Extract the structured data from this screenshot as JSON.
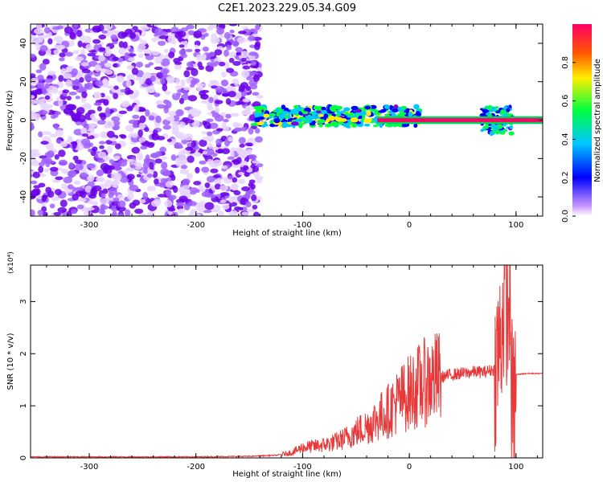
{
  "title": "C2E1.2023.229.05.34.G09",
  "colors": {
    "signal": "#e8393a",
    "axis": "#000000",
    "background": "#ffffff"
  },
  "chart_data": [
    {
      "type": "heatmap",
      "xlabel": "Height of straight line (km)",
      "ylabel": "Frequency (Hz)",
      "xlim": [
        -355,
        125
      ],
      "ylim": [
        -50,
        50
      ],
      "x_ticks": [
        -300,
        -200,
        -100,
        0,
        100
      ],
      "y_ticks": [
        -40,
        -20,
        0,
        20,
        40
      ],
      "colorbar": {
        "label": "Normalized spectral amplitude",
        "range": [
          0,
          1
        ],
        "ticks": [
          "0.0",
          "0.2",
          "0.4",
          "0.6",
          "0.8"
        ],
        "colormap": [
          "#eeddff",
          "#7a00e0",
          "#0000ff",
          "#00c8ff",
          "#00ff40",
          "#ffee00",
          "#ff5500",
          "#ff0066"
        ]
      },
      "regions": [
        {
          "x_range": [
            -355,
            -140
          ],
          "y_range": [
            -50,
            50
          ],
          "amplitude": [
            0.0,
            0.2
          ],
          "description_level": "scattered low amplitude"
        },
        {
          "x_range": [
            -145,
            10
          ],
          "y_center": 2,
          "y_halfwidth": 5,
          "amplitude": [
            0.2,
            0.7
          ]
        },
        {
          "x_range": [
            -30,
            125
          ],
          "y_center": 0,
          "y_halfwidth": 1,
          "amplitude": [
            0.9,
            1.0
          ]
        },
        {
          "x_range": [
            68,
            97
          ],
          "y_center": 0,
          "y_halfwidth": 7,
          "amplitude": [
            0.2,
            0.6
          ]
        }
      ]
    },
    {
      "type": "line",
      "xlabel": "Height of straight line (km)",
      "ylabel": "SNR (10 * v/v)",
      "y_multiplier": "(x10⁴)",
      "xlim": [
        -355,
        125
      ],
      "ylim": [
        0,
        3.7
      ],
      "x_ticks": [
        -300,
        -200,
        -100,
        0,
        100
      ],
      "y_ticks": [
        0,
        1,
        2,
        3
      ],
      "series": [
        {
          "x": [
            -355,
            -300,
            -250,
            -200,
            -150,
            -125,
            -110,
            -100,
            -90,
            -80,
            -70,
            -60,
            -50,
            -40,
            -30,
            -20,
            -10,
            0,
            10,
            20,
            30,
            40,
            50,
            60,
            70,
            80,
            85,
            88,
            90,
            92,
            94,
            96,
            98,
            100,
            110,
            125
          ],
          "y": [
            0.02,
            0.02,
            0.02,
            0.02,
            0.03,
            0.05,
            0.1,
            0.2,
            0.22,
            0.25,
            0.3,
            0.38,
            0.5,
            0.6,
            0.75,
            0.9,
            1.1,
            1.25,
            1.4,
            1.5,
            1.55,
            1.6,
            1.62,
            1.65,
            1.65,
            1.7,
            2.2,
            2.8,
            3.5,
            2.5,
            3.3,
            1.2,
            0.8,
            1.6,
            1.62,
            1.62
          ]
        }
      ]
    }
  ]
}
